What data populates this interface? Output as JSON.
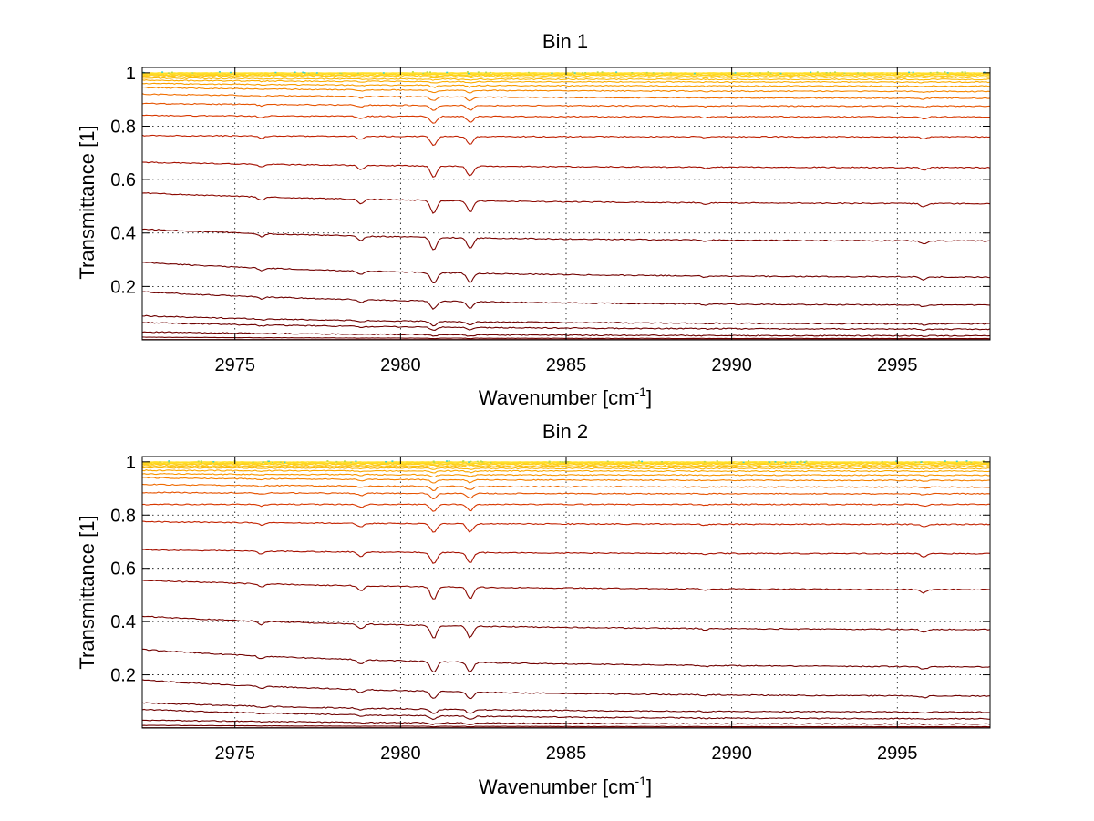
{
  "figure": {
    "background": "#ffffff"
  },
  "chart_data": [
    {
      "type": "line",
      "title": "Bin 1",
      "xlabel": "Wavenumber [cm",
      "xlabel_exp": "-1",
      "xlabel_close": "]",
      "ylabel": "Transmittance [1]",
      "xlim": [
        2972.2,
        2997.8
      ],
      "ylim": [
        0.0,
        1.02
      ],
      "xticks": [
        2975,
        2980,
        2985,
        2990,
        2995
      ],
      "xtick_labels": [
        "2975",
        "2980",
        "2985",
        "2990",
        "2995"
      ],
      "yticks": [
        0.2,
        0.4,
        0.6,
        0.8,
        1.0
      ],
      "ytick_labels": [
        "0.2",
        "0.4",
        "0.6",
        "0.8",
        "1"
      ],
      "grid": true,
      "series_count": 24,
      "colormap": "hot (dark red at low transmittance → orange/yellow near 1)",
      "series_levels_start": [
        0.0,
        0.01,
        0.03,
        0.065,
        0.09,
        0.18,
        0.29,
        0.415,
        0.55,
        0.665,
        0.765,
        0.84,
        0.885,
        0.92,
        0.945,
        0.96,
        0.972,
        0.98,
        0.986,
        0.99,
        0.993,
        0.996,
        0.998,
        1.0
      ],
      "series_levels_end": [
        0.0,
        0.005,
        0.015,
        0.04,
        0.06,
        0.13,
        0.235,
        0.37,
        0.51,
        0.645,
        0.76,
        0.835,
        0.875,
        0.905,
        0.93,
        0.95,
        0.965,
        0.975,
        0.983,
        0.989,
        0.993,
        0.996,
        0.998,
        1.0
      ],
      "absorption_lines": [
        {
          "wavenumber": 2975.8,
          "relative_depth": 0.25
        },
        {
          "wavenumber": 2978.8,
          "relative_depth": 0.35
        },
        {
          "wavenumber": 2981.0,
          "relative_depth": 1.0
        },
        {
          "wavenumber": 2982.1,
          "relative_depth": 0.85
        },
        {
          "wavenumber": 2989.2,
          "relative_depth": 0.12
        },
        {
          "wavenumber": 2995.8,
          "relative_depth": 0.25
        }
      ]
    },
    {
      "type": "line",
      "title": "Bin 2",
      "xlabel": "Wavenumber [cm",
      "xlabel_exp": "-1",
      "xlabel_close": "]",
      "ylabel": "Transmittance [1]",
      "xlim": [
        2972.2,
        2997.8
      ],
      "ylim": [
        0.0,
        1.02
      ],
      "xticks": [
        2975,
        2980,
        2985,
        2990,
        2995
      ],
      "xtick_labels": [
        "2975",
        "2980",
        "2985",
        "2990",
        "2995"
      ],
      "yticks": [
        0.2,
        0.4,
        0.6,
        0.8,
        1.0
      ],
      "ytick_labels": [
        "0.2",
        "0.4",
        "0.6",
        "0.8",
        "1"
      ],
      "grid": true,
      "series_count": 24,
      "colormap": "hot (dark red at low transmittance → orange/yellow near 1)",
      "series_levels_start": [
        0.0,
        0.01,
        0.03,
        0.07,
        0.095,
        0.18,
        0.295,
        0.42,
        0.555,
        0.67,
        0.775,
        0.84,
        0.885,
        0.915,
        0.94,
        0.955,
        0.968,
        0.978,
        0.985,
        0.99,
        0.993,
        0.996,
        0.998,
        1.0
      ],
      "series_levels_end": [
        0.0,
        0.005,
        0.015,
        0.035,
        0.06,
        0.12,
        0.23,
        0.37,
        0.52,
        0.655,
        0.765,
        0.84,
        0.88,
        0.905,
        0.93,
        0.95,
        0.965,
        0.975,
        0.983,
        0.989,
        0.993,
        0.996,
        0.998,
        1.0
      ],
      "absorption_lines": [
        {
          "wavenumber": 2975.8,
          "relative_depth": 0.25
        },
        {
          "wavenumber": 2978.8,
          "relative_depth": 0.4
        },
        {
          "wavenumber": 2981.0,
          "relative_depth": 1.0
        },
        {
          "wavenumber": 2982.1,
          "relative_depth": 0.9
        },
        {
          "wavenumber": 2989.2,
          "relative_depth": 0.12
        },
        {
          "wavenumber": 2995.8,
          "relative_depth": 0.25
        }
      ]
    }
  ]
}
